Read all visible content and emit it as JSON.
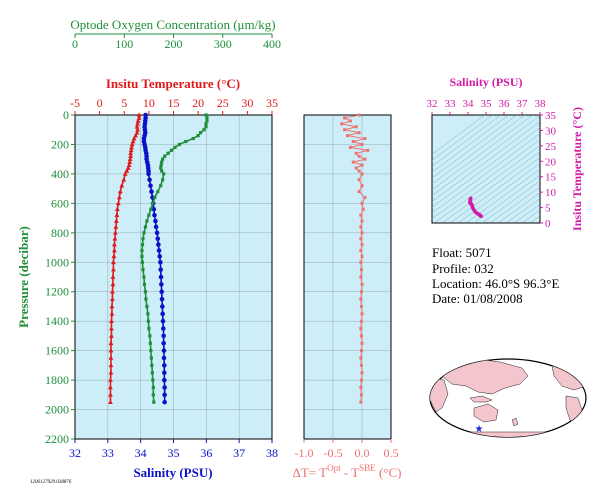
{
  "colors": {
    "oxygen": "#1f8f3a",
    "temperature": "#e01a1a",
    "salinity": "#0a12c8",
    "delta": "#f07070",
    "ts": "#d21aa8",
    "panel_bg": "#cdeef8",
    "land": "#f2c6cc",
    "star": "#1a2ad8"
  },
  "info": {
    "float": "Float:  5071",
    "profile": "Profile:  032",
    "location": "Location:  46.0°S  96.3°E",
    "date": "Date:  01/08/2008"
  },
  "footer_id": "1206127929.038876",
  "chart_data": [
    {
      "id": "profile-panel",
      "type": "line",
      "ylabel": "Pressure (decibar)",
      "ylim": [
        0,
        2200
      ],
      "y_ticks": [
        "0",
        "200",
        "400",
        "600",
        "800",
        "1000",
        "1200",
        "1400",
        "1600",
        "1800",
        "2000",
        "2200"
      ],
      "axes": {
        "salinity": {
          "label": "Salinity (PSU)",
          "xlim": [
            32,
            38
          ],
          "ticks": [
            "32",
            "33",
            "34",
            "35",
            "36",
            "37",
            "38"
          ]
        },
        "temperature": {
          "label": "Insitu Temperature (°C)",
          "xlim": [
            -5,
            35
          ],
          "ticks": [
            "-5",
            "0",
            "5",
            "10",
            "15",
            "20",
            "25",
            "30",
            "35"
          ]
        },
        "oxygen": {
          "label": "Optode Oxygen Concentration (μm/kg)",
          "xlim": [
            0,
            400
          ],
          "ticks": [
            "0",
            "100",
            "200",
            "300",
            "400"
          ]
        }
      },
      "series": [
        {
          "key": "temperature",
          "marker": "triangle",
          "points": [
            [
              8.0,
              0
            ],
            [
              8.0,
              20
            ],
            [
              7.8,
              40
            ],
            [
              7.7,
              60
            ],
            [
              7.6,
              80
            ],
            [
              7.7,
              100
            ],
            [
              7.6,
              120
            ],
            [
              7.3,
              140
            ],
            [
              7.0,
              160
            ],
            [
              6.8,
              180
            ],
            [
              6.6,
              200
            ],
            [
              6.5,
              220
            ],
            [
              6.4,
              240
            ],
            [
              6.3,
              260
            ],
            [
              6.3,
              280
            ],
            [
              6.2,
              300
            ],
            [
              6.1,
              320
            ],
            [
              6.0,
              340
            ],
            [
              5.8,
              360
            ],
            [
              5.5,
              380
            ],
            [
              5.2,
              400
            ],
            [
              4.9,
              440
            ],
            [
              4.5,
              480
            ],
            [
              4.2,
              520
            ],
            [
              4.0,
              560
            ],
            [
              3.8,
              600
            ],
            [
              3.6,
              640
            ],
            [
              3.5,
              680
            ],
            [
              3.4,
              720
            ],
            [
              3.3,
              760
            ],
            [
              3.2,
              800
            ],
            [
              3.1,
              840
            ],
            [
              3.0,
              880
            ],
            [
              3.0,
              920
            ],
            [
              2.9,
              960
            ],
            [
              2.8,
              1000
            ],
            [
              2.8,
              1050
            ],
            [
              2.7,
              1100
            ],
            [
              2.7,
              1150
            ],
            [
              2.6,
              1200
            ],
            [
              2.6,
              1250
            ],
            [
              2.5,
              1300
            ],
            [
              2.5,
              1350
            ],
            [
              2.4,
              1400
            ],
            [
              2.4,
              1450
            ],
            [
              2.4,
              1500
            ],
            [
              2.3,
              1550
            ],
            [
              2.3,
              1600
            ],
            [
              2.3,
              1650
            ],
            [
              2.3,
              1700
            ],
            [
              2.3,
              1750
            ],
            [
              2.2,
              1800
            ],
            [
              2.2,
              1850
            ],
            [
              2.2,
              1900
            ],
            [
              2.2,
              1950
            ]
          ]
        },
        {
          "key": "salinity",
          "marker": "circle",
          "points": [
            [
              34.15,
              0
            ],
            [
              34.15,
              20
            ],
            [
              34.14,
              40
            ],
            [
              34.13,
              60
            ],
            [
              34.12,
              80
            ],
            [
              34.13,
              100
            ],
            [
              34.14,
              120
            ],
            [
              34.12,
              140
            ],
            [
              34.1,
              160
            ],
            [
              34.1,
              180
            ],
            [
              34.12,
              200
            ],
            [
              34.14,
              220
            ],
            [
              34.15,
              240
            ],
            [
              34.17,
              260
            ],
            [
              34.18,
              280
            ],
            [
              34.18,
              300
            ],
            [
              34.2,
              320
            ],
            [
              34.22,
              340
            ],
            [
              34.23,
              360
            ],
            [
              34.24,
              380
            ],
            [
              34.24,
              400
            ],
            [
              34.27,
              440
            ],
            [
              34.3,
              480
            ],
            [
              34.33,
              520
            ],
            [
              34.36,
              560
            ],
            [
              34.38,
              600
            ],
            [
              34.4,
              640
            ],
            [
              34.42,
              680
            ],
            [
              34.45,
              720
            ],
            [
              34.47,
              760
            ],
            [
              34.5,
              800
            ],
            [
              34.52,
              840
            ],
            [
              34.54,
              880
            ],
            [
              34.56,
              920
            ],
            [
              34.58,
              960
            ],
            [
              34.6,
              1000
            ],
            [
              34.61,
              1050
            ],
            [
              34.62,
              1100
            ],
            [
              34.63,
              1150
            ],
            [
              34.64,
              1200
            ],
            [
              34.65,
              1250
            ],
            [
              34.66,
              1300
            ],
            [
              34.67,
              1350
            ],
            [
              34.68,
              1400
            ],
            [
              34.69,
              1450
            ],
            [
              34.7,
              1500
            ],
            [
              34.7,
              1550
            ],
            [
              34.71,
              1600
            ],
            [
              34.71,
              1650
            ],
            [
              34.72,
              1700
            ],
            [
              34.72,
              1750
            ],
            [
              34.72,
              1800
            ],
            [
              34.73,
              1850
            ],
            [
              34.73,
              1900
            ],
            [
              34.73,
              1950
            ]
          ]
        },
        {
          "key": "oxygen",
          "marker": "square",
          "points": [
            [
              266,
              0
            ],
            [
              268,
              20
            ],
            [
              268,
              40
            ],
            [
              266,
              60
            ],
            [
              266,
              80
            ],
            [
              262,
              100
            ],
            [
              255,
              120
            ],
            [
              250,
              140
            ],
            [
              240,
              160
            ],
            [
              225,
              180
            ],
            [
              212,
              200
            ],
            [
              203,
              220
            ],
            [
              196,
              240
            ],
            [
              189,
              260
            ],
            [
              182,
              280
            ],
            [
              178,
              300
            ],
            [
              176,
              320
            ],
            [
              175,
              340
            ],
            [
              174,
              360
            ],
            [
              176,
              380
            ],
            [
              180,
              400
            ],
            [
              178,
              440
            ],
            [
              174,
              480
            ],
            [
              168,
              520
            ],
            [
              162,
              560
            ],
            [
              158,
              600
            ],
            [
              154,
              640
            ],
            [
              150,
              680
            ],
            [
              146,
              720
            ],
            [
              143,
              760
            ],
            [
              140,
              800
            ],
            [
              138,
              840
            ],
            [
              137,
              880
            ],
            [
              136,
              920
            ],
            [
              136,
              960
            ],
            [
              137,
              1000
            ],
            [
              138,
              1050
            ],
            [
              140,
              1100
            ],
            [
              141,
              1150
            ],
            [
              143,
              1200
            ],
            [
              144,
              1250
            ],
            [
              146,
              1300
            ],
            [
              148,
              1350
            ],
            [
              149,
              1400
            ],
            [
              150,
              1450
            ],
            [
              152,
              1500
            ],
            [
              153,
              1550
            ],
            [
              154,
              1600
            ],
            [
              155,
              1650
            ],
            [
              156,
              1700
            ],
            [
              157,
              1750
            ],
            [
              158,
              1800
            ],
            [
              159,
              1850
            ],
            [
              159,
              1900
            ],
            [
              160,
              1950
            ]
          ]
        }
      ]
    },
    {
      "id": "delta-panel",
      "type": "line",
      "xlabel_prefix": "ΔT= T",
      "xlabel_sup1": "Opt",
      "xlabel_mid": " - T",
      "xlabel_sup2": "SBE",
      "xlabel_suffix": " (°C)",
      "xlim": [
        -1.0,
        0.5
      ],
      "x_ticks": [
        "-1.0",
        "-0.5",
        "0.0",
        "0.5"
      ],
      "ylim": [
        0,
        2200
      ],
      "points": [
        [
          -0.05,
          0
        ],
        [
          -0.3,
          20
        ],
        [
          -0.2,
          40
        ],
        [
          -0.35,
          60
        ],
        [
          -0.1,
          80
        ],
        [
          -0.3,
          100
        ],
        [
          -0.05,
          120
        ],
        [
          -0.25,
          140
        ],
        [
          0.05,
          160
        ],
        [
          -0.15,
          180
        ],
        [
          0.0,
          200
        ],
        [
          -0.2,
          220
        ],
        [
          0.1,
          240
        ],
        [
          -0.1,
          260
        ],
        [
          -0.05,
          280
        ],
        [
          0.05,
          300
        ],
        [
          -0.15,
          320
        ],
        [
          0.0,
          340
        ],
        [
          -0.1,
          360
        ],
        [
          -0.05,
          380
        ],
        [
          0.0,
          400
        ],
        [
          -0.05,
          440
        ],
        [
          0.0,
          480
        ],
        [
          -0.05,
          520
        ],
        [
          0.05,
          560
        ],
        [
          0.0,
          600
        ],
        [
          0.02,
          640
        ],
        [
          -0.02,
          680
        ],
        [
          0.0,
          720
        ],
        [
          -0.02,
          760
        ],
        [
          0.0,
          800
        ],
        [
          -0.02,
          840
        ],
        [
          0.0,
          880
        ],
        [
          -0.02,
          920
        ],
        [
          0.0,
          960
        ],
        [
          -0.02,
          1000
        ],
        [
          -0.01,
          1050
        ],
        [
          -0.02,
          1100
        ],
        [
          0.0,
          1150
        ],
        [
          -0.01,
          1200
        ],
        [
          -0.02,
          1250
        ],
        [
          -0.01,
          1300
        ],
        [
          0.0,
          1350
        ],
        [
          -0.01,
          1400
        ],
        [
          -0.02,
          1450
        ],
        [
          -0.01,
          1500
        ],
        [
          0.0,
          1550
        ],
        [
          -0.01,
          1600
        ],
        [
          -0.02,
          1650
        ],
        [
          -0.01,
          1700
        ],
        [
          0.0,
          1750
        ],
        [
          -0.01,
          1800
        ],
        [
          -0.02,
          1850
        ],
        [
          -0.01,
          1900
        ],
        [
          -0.02,
          1950
        ]
      ]
    },
    {
      "id": "ts-panel",
      "type": "scatter",
      "title": "Salinity (PSU)",
      "ylabel": "Insitu Temperature (°C)",
      "xlim": [
        32,
        38
      ],
      "x_ticks": [
        "32",
        "33",
        "34",
        "35",
        "36",
        "37",
        "38"
      ],
      "ylim": [
        0,
        35
      ],
      "y_ticks": [
        "0",
        "5",
        "10",
        "15",
        "20",
        "25",
        "30",
        "35"
      ],
      "points": [
        [
          34.15,
          8.0
        ],
        [
          34.14,
          7.8
        ],
        [
          34.13,
          7.6
        ],
        [
          34.12,
          7.3
        ],
        [
          34.1,
          6.8
        ],
        [
          34.12,
          6.5
        ],
        [
          34.15,
          6.3
        ],
        [
          34.18,
          6.2
        ],
        [
          34.2,
          6.0
        ],
        [
          34.23,
          5.8
        ],
        [
          34.24,
          5.2
        ],
        [
          34.27,
          4.9
        ],
        [
          34.3,
          4.5
        ],
        [
          34.36,
          4.0
        ],
        [
          34.42,
          3.5
        ],
        [
          34.5,
          3.2
        ],
        [
          34.56,
          3.0
        ],
        [
          34.6,
          2.8
        ],
        [
          34.63,
          2.7
        ],
        [
          34.66,
          2.5
        ],
        [
          34.68,
          2.4
        ],
        [
          34.7,
          2.3
        ],
        [
          34.72,
          2.3
        ],
        [
          34.73,
          2.2
        ]
      ]
    }
  ]
}
